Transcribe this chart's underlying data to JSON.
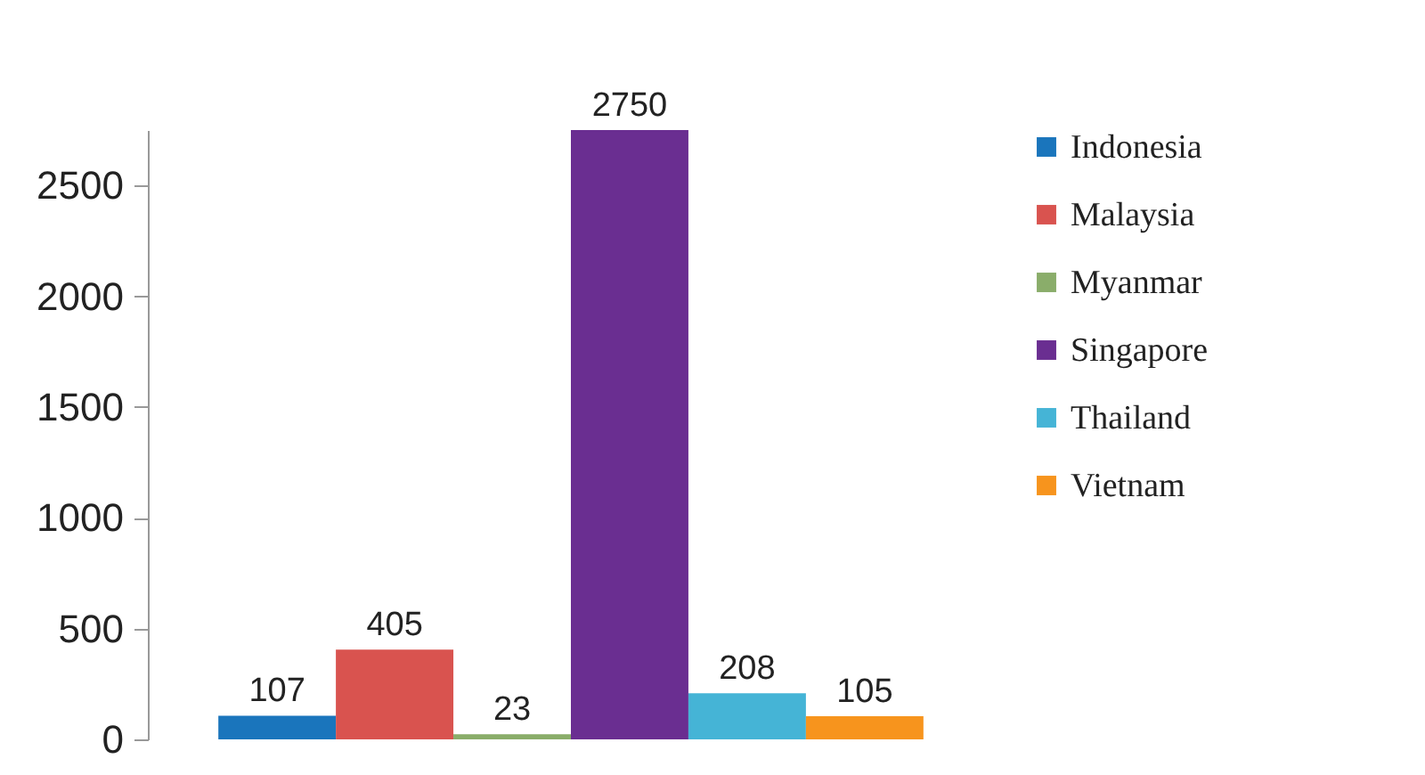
{
  "chart_data": {
    "type": "bar",
    "categories": [
      null
    ],
    "series": [
      {
        "name": "Indonesia",
        "color": "#1a75bc",
        "values": [
          107
        ]
      },
      {
        "name": "Malaysia",
        "color": "#d9534f",
        "values": [
          405
        ]
      },
      {
        "name": "Myanmar",
        "color": "#8aad6a",
        "values": [
          23
        ]
      },
      {
        "name": "Singapore",
        "color": "#6a2e91",
        "values": [
          2750
        ]
      },
      {
        "name": "Thailand",
        "color": "#45b4d6",
        "values": [
          208
        ]
      },
      {
        "name": "Vietnam",
        "color": "#f7941d",
        "values": [
          105
        ]
      }
    ],
    "ylim": [
      0,
      2750
    ],
    "yticks": [
      0,
      500,
      1000,
      1500,
      2000,
      2500
    ],
    "data_labels": true,
    "grid": false,
    "legend": "right"
  }
}
